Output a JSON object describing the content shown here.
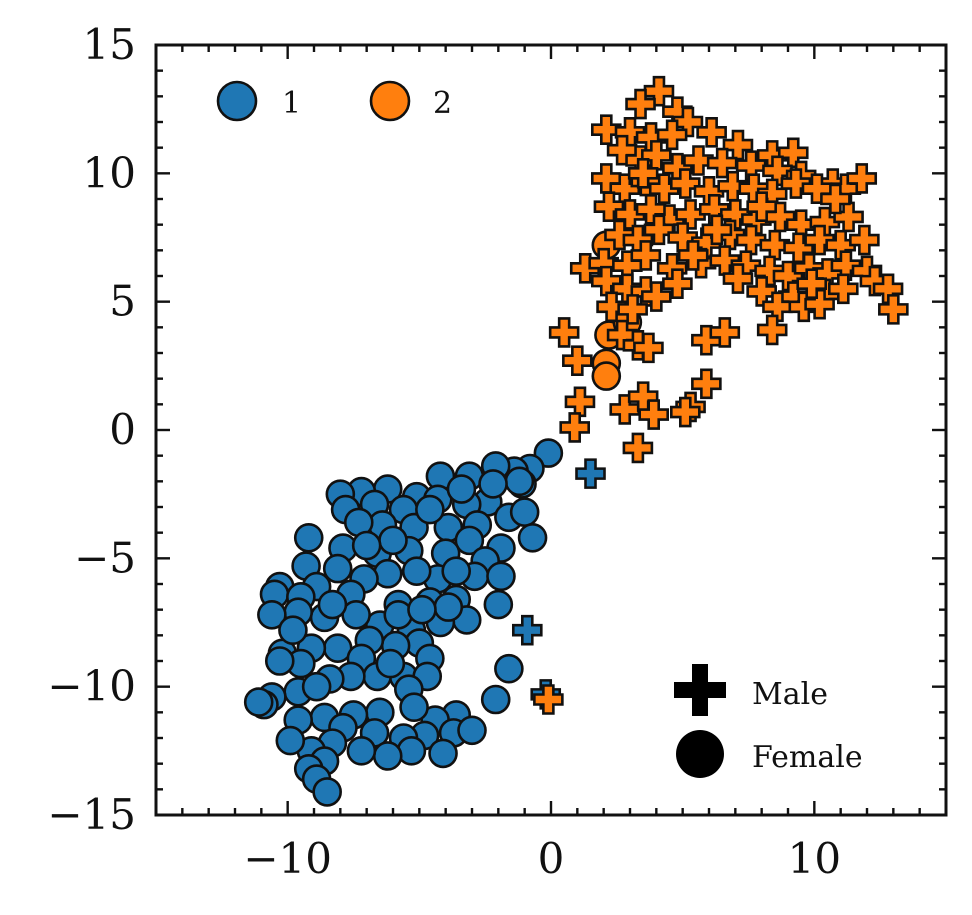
{
  "chart_data": {
    "type": "scatter",
    "title": "",
    "xlabel": "",
    "ylabel": "",
    "xlim": [
      -15,
      15
    ],
    "ylim": [
      -15,
      15
    ],
    "x_ticks": [
      -10,
      0,
      10
    ],
    "x_tick_labels": [
      "−10",
      "0",
      "10"
    ],
    "y_ticks": [
      -15,
      -10,
      -5,
      0,
      5,
      10,
      15
    ],
    "y_tick_labels": [
      "−15",
      "−10",
      "−5",
      "0",
      "5",
      "10",
      "15"
    ],
    "grid": false,
    "color_legend": {
      "placement": "top-left",
      "entries": [
        {
          "label": "1",
          "color": "#1f77b4"
        },
        {
          "label": "2",
          "color": "#ff7f0e"
        }
      ]
    },
    "marker_legend": {
      "placement": "bottom-right",
      "entries": [
        {
          "label": "Male",
          "marker": "plus"
        },
        {
          "label": "Female",
          "marker": "circle"
        }
      ]
    },
    "series": [
      {
        "name": "1",
        "color": "#1f77b4",
        "female": [
          [
            -0.1,
            -0.9
          ],
          [
            -0.8,
            -1.5
          ],
          [
            -1.4,
            -1.6
          ],
          [
            -2.1,
            -1.4
          ],
          [
            -3.1,
            -1.8
          ],
          [
            -4.2,
            -1.8
          ],
          [
            -5.1,
            -2.6
          ],
          [
            -6.2,
            -2.3
          ],
          [
            -7.2,
            -2.4
          ],
          [
            -8.0,
            -2.5
          ],
          [
            -1.1,
            -2.1
          ],
          [
            -2.4,
            -2.8
          ],
          [
            -3.2,
            -2.9
          ],
          [
            -4.3,
            -2.7
          ],
          [
            -5.6,
            -3.1
          ],
          [
            -6.7,
            -2.9
          ],
          [
            -7.8,
            -3.1
          ],
          [
            -1.6,
            -3.4
          ],
          [
            -2.8,
            -3.7
          ],
          [
            -3.9,
            -3.8
          ],
          [
            -5.2,
            -3.8
          ],
          [
            -6.4,
            -3.7
          ],
          [
            -7.3,
            -3.6
          ],
          [
            -1.0,
            -3.2
          ],
          [
            -0.7,
            -4.2
          ],
          [
            -1.9,
            -4.6
          ],
          [
            -3.1,
            -4.3
          ],
          [
            -4.0,
            -4.8
          ],
          [
            -5.4,
            -4.7
          ],
          [
            -6.6,
            -4.8
          ],
          [
            -7.9,
            -4.6
          ],
          [
            -9.2,
            -4.2
          ],
          [
            -2.5,
            -5.1
          ],
          [
            -2.9,
            -5.7
          ],
          [
            -4.3,
            -5.8
          ],
          [
            -5.1,
            -5.5
          ],
          [
            -6.2,
            -5.6
          ],
          [
            -7.1,
            -5.8
          ],
          [
            -8.1,
            -5.4
          ],
          [
            -9.3,
            -5.3
          ],
          [
            -1.9,
            -5.7
          ],
          [
            -3.6,
            -6.6
          ],
          [
            -4.6,
            -6.7
          ],
          [
            -5.8,
            -6.8
          ],
          [
            -7.6,
            -6.4
          ],
          [
            -8.9,
            -6.1
          ],
          [
            -10.3,
            -6.1
          ],
          [
            -10.5,
            -6.4
          ],
          [
            -9.5,
            -6.5
          ],
          [
            -2.0,
            -6.8
          ],
          [
            -3.2,
            -7.4
          ],
          [
            -4.2,
            -7.5
          ],
          [
            -5.3,
            -7.8
          ],
          [
            -6.5,
            -7.6
          ],
          [
            -7.4,
            -7.2
          ],
          [
            -8.6,
            -7.3
          ],
          [
            -9.6,
            -7.1
          ],
          [
            -10.6,
            -7.2
          ],
          [
            -5.8,
            -7.2
          ],
          [
            -3.9,
            -6.9
          ],
          [
            -5.0,
            -8.3
          ],
          [
            -5.9,
            -8.4
          ],
          [
            -6.9,
            -8.2
          ],
          [
            -8.1,
            -8.5
          ],
          [
            -9.1,
            -8.5
          ],
          [
            -10.2,
            -8.7
          ],
          [
            -7.2,
            -8.9
          ],
          [
            -4.6,
            -8.9
          ],
          [
            -9.5,
            -9.1
          ],
          [
            -10.3,
            -9.0
          ],
          [
            -5.6,
            -9.6
          ],
          [
            -6.6,
            -9.6
          ],
          [
            -7.6,
            -9.6
          ],
          [
            -8.4,
            -9.7
          ],
          [
            -9.6,
            -10.2
          ],
          [
            -10.6,
            -10.4
          ],
          [
            -4.7,
            -9.6
          ],
          [
            -1.6,
            -9.3
          ],
          [
            -5.4,
            -10.1
          ],
          [
            -8.9,
            -10.0
          ],
          [
            -2.1,
            -10.5
          ],
          [
            -3.6,
            -11.1
          ],
          [
            -4.4,
            -11.3
          ],
          [
            -5.2,
            -10.8
          ],
          [
            -6.5,
            -11.0
          ],
          [
            -7.5,
            -11.1
          ],
          [
            -8.6,
            -11.2
          ],
          [
            -9.6,
            -11.3
          ],
          [
            -10.9,
            -10.7
          ],
          [
            -11.1,
            -10.6
          ],
          [
            -3.7,
            -11.8
          ],
          [
            -4.8,
            -11.9
          ],
          [
            -5.6,
            -12.0
          ],
          [
            -6.7,
            -11.8
          ],
          [
            -7.9,
            -11.6
          ],
          [
            -8.3,
            -12.2
          ],
          [
            -9.1,
            -12.5
          ],
          [
            -4.1,
            -12.6
          ],
          [
            -5.3,
            -12.5
          ],
          [
            -6.2,
            -12.7
          ],
          [
            -7.2,
            -12.5
          ],
          [
            -8.6,
            -12.9
          ],
          [
            -9.2,
            -13.2
          ],
          [
            -8.9,
            -13.6
          ],
          [
            -8.5,
            -14.1
          ],
          [
            -1.2,
            -2.0
          ],
          [
            -2.2,
            -2.1
          ],
          [
            -3.4,
            -2.3
          ],
          [
            -4.6,
            -3.1
          ],
          [
            -6.0,
            -4.3
          ],
          [
            -7.0,
            -4.5
          ],
          [
            -3.6,
            -5.5
          ],
          [
            -8.3,
            -6.8
          ],
          [
            -9.8,
            -7.8
          ],
          [
            -4.9,
            -7.0
          ],
          [
            -6.1,
            -9.1
          ],
          [
            -3.0,
            -11.7
          ],
          [
            -9.9,
            -12.1
          ]
        ],
        "male": [
          [
            1.5,
            -1.7
          ],
          [
            -0.9,
            -7.8
          ],
          [
            -0.2,
            -10.3
          ]
        ]
      },
      {
        "name": "2",
        "color": "#ff7f0e",
        "female": [
          [
            2.1,
            7.2
          ],
          [
            2.2,
            3.7
          ],
          [
            2.9,
            4.2
          ],
          [
            2.1,
            2.6
          ],
          [
            2.1,
            2.1
          ]
        ],
        "male": [
          [
            4.1,
            13.2
          ],
          [
            3.4,
            12.7
          ],
          [
            4.8,
            12.4
          ],
          [
            5.2,
            12.0
          ],
          [
            2.1,
            11.7
          ],
          [
            3.0,
            11.6
          ],
          [
            3.8,
            11.4
          ],
          [
            6.1,
            11.6
          ],
          [
            7.1,
            11.1
          ],
          [
            8.4,
            10.7
          ],
          [
            9.2,
            10.8
          ],
          [
            2.7,
            10.9
          ],
          [
            3.4,
            10.5
          ],
          [
            4.0,
            10.7
          ],
          [
            4.8,
            10.2
          ],
          [
            5.6,
            10.5
          ],
          [
            6.5,
            10.4
          ],
          [
            7.6,
            10.3
          ],
          [
            8.6,
            10.1
          ],
          [
            9.5,
            9.9
          ],
          [
            10.7,
            9.6
          ],
          [
            11.2,
            9.4
          ],
          [
            11.8,
            9.8
          ],
          [
            2.1,
            9.8
          ],
          [
            2.8,
            9.4
          ],
          [
            3.6,
            9.7
          ],
          [
            4.3,
            9.4
          ],
          [
            5.1,
            9.6
          ],
          [
            6.0,
            9.3
          ],
          [
            6.9,
            9.5
          ],
          [
            7.7,
            9.4
          ],
          [
            8.4,
            9.2
          ],
          [
            9.3,
            9.6
          ],
          [
            10.1,
            9.4
          ],
          [
            2.2,
            8.7
          ],
          [
            3.0,
            8.4
          ],
          [
            3.8,
            8.6
          ],
          [
            4.5,
            8.2
          ],
          [
            5.3,
            8.4
          ],
          [
            6.2,
            8.6
          ],
          [
            7.0,
            8.4
          ],
          [
            7.8,
            8.2
          ],
          [
            8.7,
            8.3
          ],
          [
            9.5,
            8.0
          ],
          [
            10.4,
            8.1
          ],
          [
            11.3,
            8.3
          ],
          [
            2.6,
            7.6
          ],
          [
            3.3,
            7.4
          ],
          [
            4.1,
            7.8
          ],
          [
            5.0,
            7.5
          ],
          [
            5.9,
            7.3
          ],
          [
            6.8,
            7.6
          ],
          [
            7.6,
            7.4
          ],
          [
            8.5,
            7.2
          ],
          [
            9.4,
            7.1
          ],
          [
            10.2,
            7.4
          ],
          [
            11.0,
            7.2
          ],
          [
            11.9,
            7.4
          ],
          [
            1.3,
            6.3
          ],
          [
            2.0,
            6.5
          ],
          [
            2.9,
            6.4
          ],
          [
            3.6,
            6.8
          ],
          [
            4.6,
            6.3
          ],
          [
            5.7,
            6.5
          ],
          [
            6.6,
            6.6
          ],
          [
            7.4,
            6.4
          ],
          [
            8.3,
            6.2
          ],
          [
            9.0,
            6.0
          ],
          [
            9.8,
            6.3
          ],
          [
            10.5,
            6.1
          ],
          [
            11.2,
            6.4
          ],
          [
            12.0,
            6.2
          ],
          [
            12.3,
            5.8
          ],
          [
            2.1,
            5.8
          ],
          [
            2.9,
            5.5
          ],
          [
            3.6,
            5.4
          ],
          [
            4.8,
            5.7
          ],
          [
            8.0,
            5.4
          ],
          [
            9.2,
            5.2
          ],
          [
            10.4,
            5.3
          ],
          [
            11.1,
            5.5
          ],
          [
            12.8,
            5.5
          ],
          [
            13.0,
            4.7
          ],
          [
            2.3,
            4.8
          ],
          [
            3.1,
            4.7
          ],
          [
            8.6,
            4.8
          ],
          [
            9.6,
            4.8
          ],
          [
            10.2,
            4.9
          ],
          [
            0.5,
            3.8
          ],
          [
            2.7,
            3.7
          ],
          [
            3.3,
            3.3
          ],
          [
            3.7,
            3.2
          ],
          [
            5.9,
            3.5
          ],
          [
            6.6,
            3.8
          ],
          [
            8.4,
            3.9
          ],
          [
            1.0,
            2.7
          ],
          [
            1.1,
            1.1
          ],
          [
            0.9,
            0.1
          ],
          [
            2.8,
            0.8
          ],
          [
            3.5,
            1.3
          ],
          [
            3.9,
            0.6
          ],
          [
            5.3,
            0.9
          ],
          [
            5.9,
            1.8
          ],
          [
            5.1,
            0.7
          ],
          [
            3.3,
            -0.7
          ],
          [
            -0.1,
            -10.5
          ],
          [
            10.8,
            9.0
          ],
          [
            4.6,
            11.5
          ],
          [
            6.3,
            7.8
          ],
          [
            8.0,
            8.7
          ],
          [
            9.9,
            5.7
          ],
          [
            7.1,
            5.9
          ],
          [
            4.0,
            5.2
          ],
          [
            3.5,
            10.0
          ],
          [
            5.4,
            6.8
          ]
        ]
      }
    ]
  }
}
